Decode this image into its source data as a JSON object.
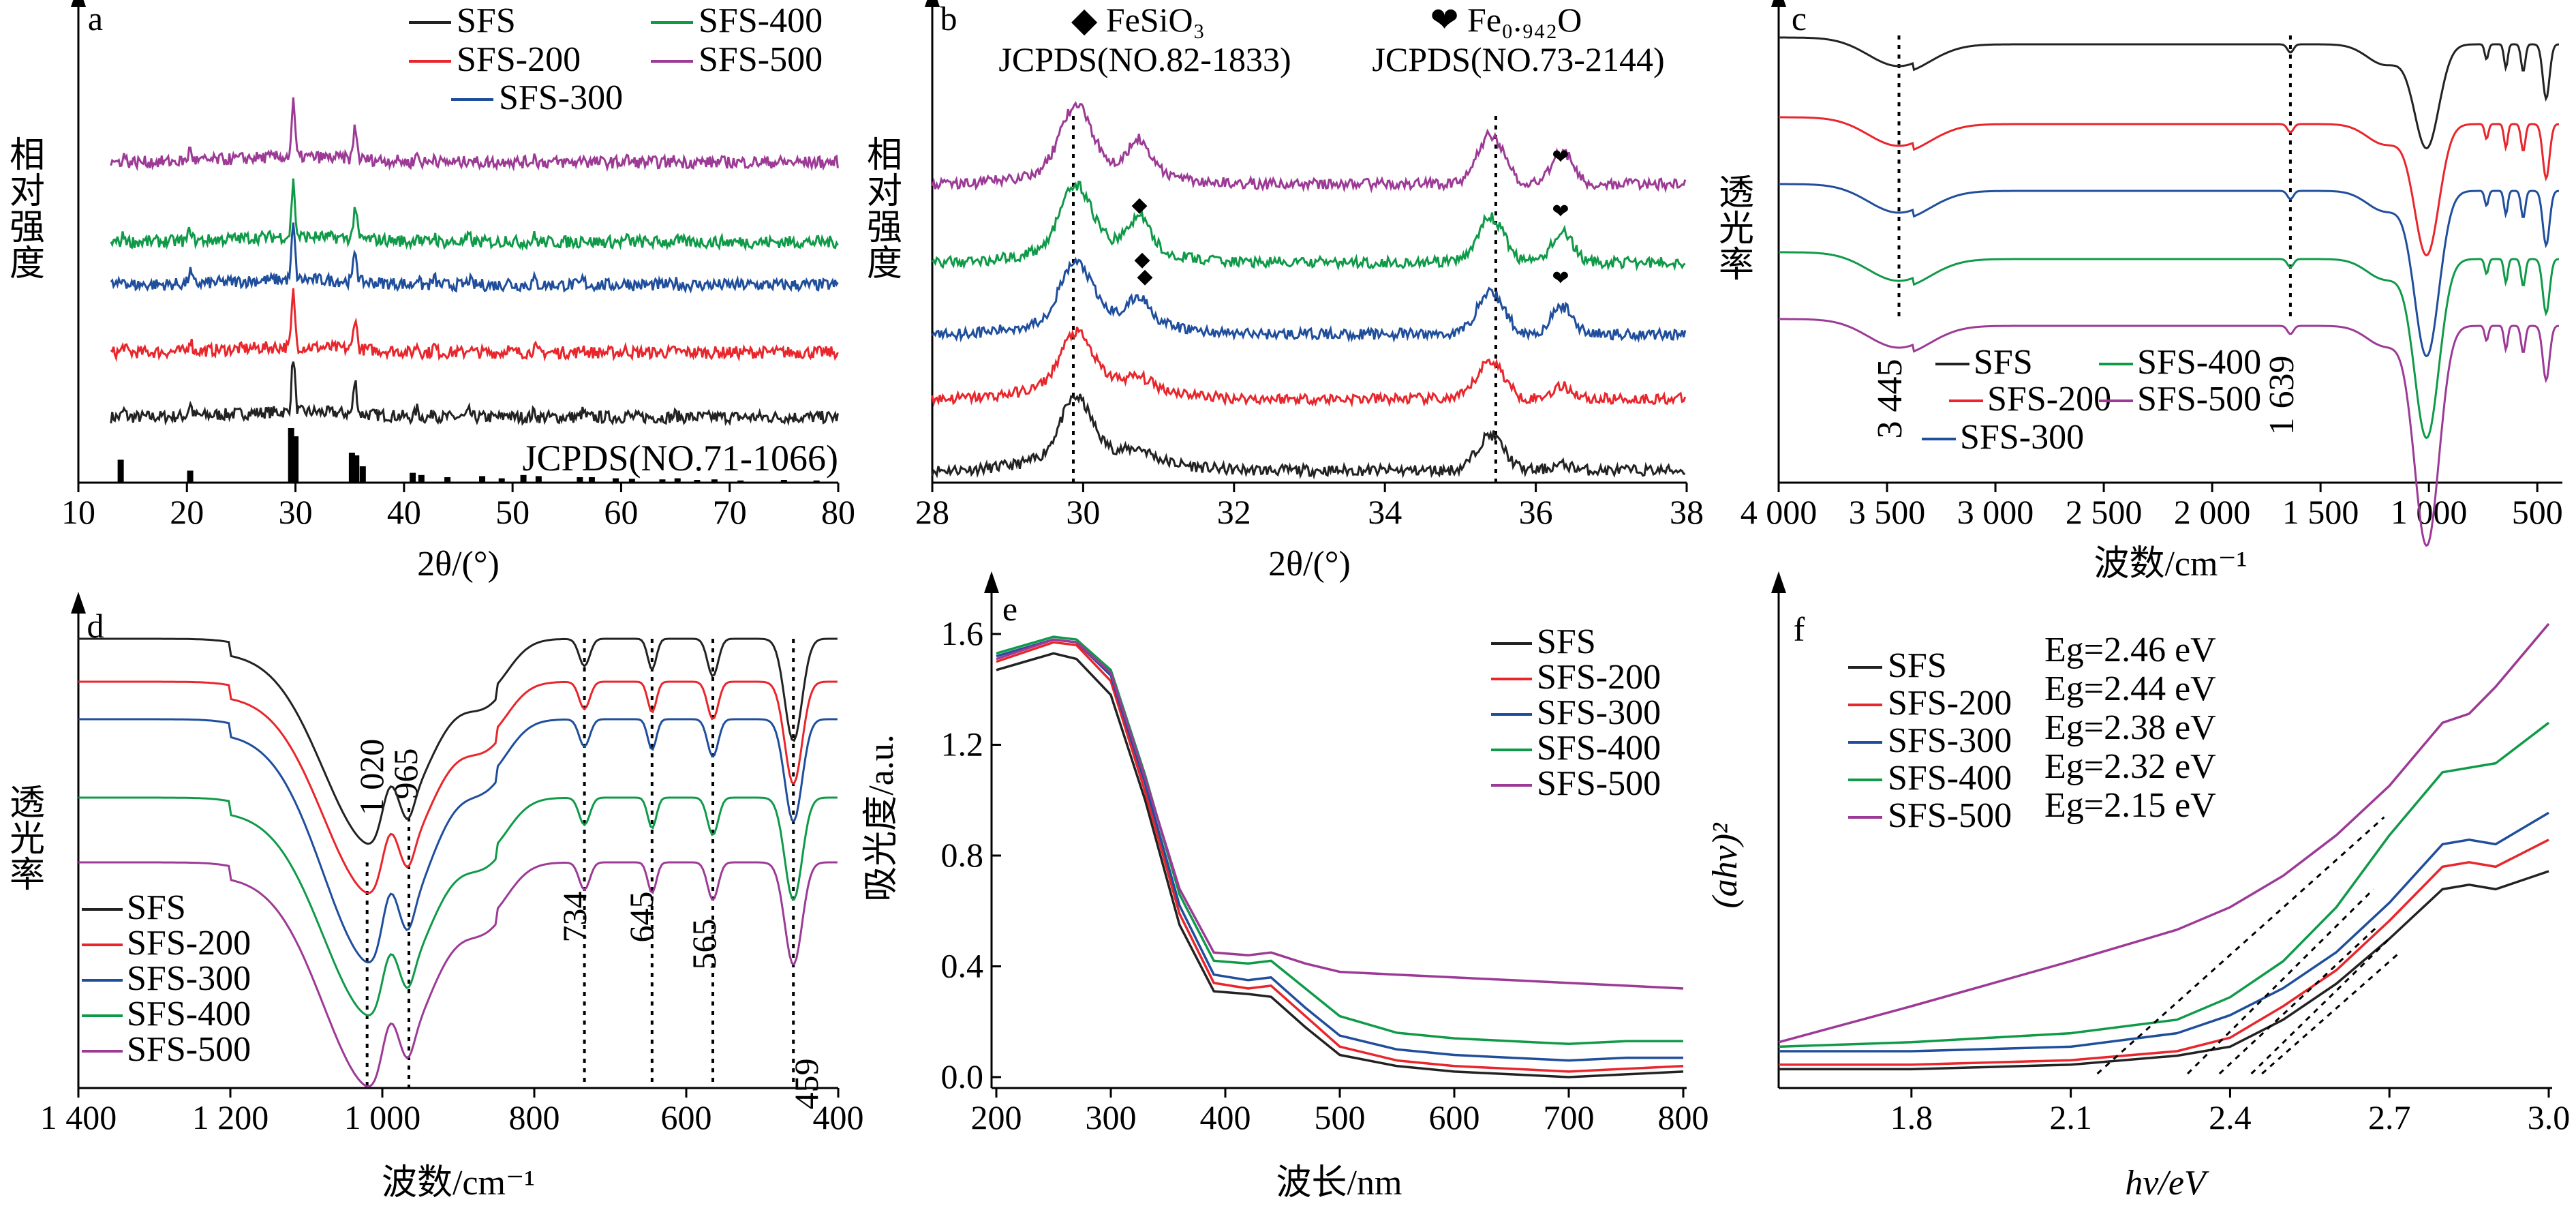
{
  "figure": {
    "panels": {
      "a": {
        "letter": "a",
        "xlabel": "2θ/(°)",
        "ylabel": "相对强度",
        "ref_label": "JCPDS(NO.71-1066)",
        "xticks": [
          "10",
          "20",
          "30",
          "40",
          "50",
          "60",
          "70",
          "80"
        ],
        "legend": [
          "SFS",
          "SFS-200",
          "SFS-300",
          "SFS-400",
          "SFS-500"
        ]
      },
      "b": {
        "letter": "b",
        "xlabel": "2θ/(°)",
        "ylabel": "相对强度",
        "xticks": [
          "28",
          "30",
          "32",
          "34",
          "36",
          "38"
        ],
        "ref1": {
          "marker": "◆",
          "name": "FeSiO₃",
          "card": "JCPDS(NO.82-1833)"
        },
        "ref2": {
          "marker": "❤",
          "name": "Fe₀.₉₄₂O",
          "card": "JCPDS(NO.73-2144)"
        }
      },
      "c": {
        "letter": "c",
        "xlabel": "波数/cm⁻¹",
        "ylabel": "透光率",
        "xticks": [
          "4 000",
          "3 500",
          "3 000",
          "2 500",
          "2 000",
          "1 500",
          "1 000",
          "500"
        ],
        "annotations": [
          "3 445",
          "1 639"
        ],
        "legend": [
          "SFS",
          "SFS-200",
          "SFS-300",
          "SFS-400",
          "SFS-500"
        ]
      },
      "d": {
        "letter": "d",
        "xlabel": "波数/cm⁻¹",
        "ylabel": "透光率",
        "xticks": [
          "1 400",
          "1 200",
          "1 000",
          "800",
          "600",
          "400"
        ],
        "annotations": [
          "1 020",
          "965",
          "734",
          "645",
          "565",
          "459"
        ],
        "legend": [
          "SFS",
          "SFS-200",
          "SFS-300",
          "SFS-400",
          "SFS-500"
        ]
      },
      "e": {
        "letter": "e",
        "xlabel": "波长/nm",
        "ylabel": "吸光度/a.u.",
        "xticks": [
          "200",
          "300",
          "400",
          "500",
          "600",
          "700",
          "800"
        ],
        "yticks": [
          "0.0",
          "0.4",
          "0.8",
          "1.2",
          "1.6"
        ],
        "legend": [
          "SFS",
          "SFS-200",
          "SFS-300",
          "SFS-400",
          "SFS-500"
        ]
      },
      "f": {
        "letter": "f",
        "xlabel": "hv/eV",
        "ylabel": "(ahv)²",
        "xticks": [
          "1.8",
          "2.1",
          "2.4",
          "2.7",
          "3.0"
        ],
        "legend": [
          "SFS",
          "SFS-200",
          "SFS-300",
          "SFS-400",
          "SFS-500"
        ],
        "eg_labels": [
          "Eg=2.46 eV",
          "Eg=2.44 eV",
          "Eg=2.38 eV",
          "Eg=2.32 eV",
          "Eg=2.15 eV"
        ]
      }
    }
  },
  "colors": {
    "SFS": "#222222",
    "SFS-200": "#e8262c",
    "SFS-300": "#1f4e9c",
    "SFS-400": "#0f9a48",
    "SFS-500": "#9c3a96",
    "axis": "#000000"
  },
  "chart_data": [
    {
      "panel": "a",
      "type": "line",
      "title": "",
      "xlabel": "2θ/(°)",
      "ylabel": "相对强度",
      "xlim": [
        10,
        80
      ],
      "series_names": [
        "SFS",
        "SFS-200",
        "SFS-300",
        "SFS-400",
        "SFS-500"
      ],
      "peaks_2theta": [
        14.2,
        20.3,
        29.8,
        35.5,
        41.2,
        42.8,
        46.0,
        49.5,
        52.0,
        56.5,
        60.5,
        65.0
      ],
      "peak_heights": [
        0.12,
        0.22,
        1.0,
        0.6,
        0.15,
        0.12,
        0.1,
        0.08,
        0.1,
        0.1,
        0.06,
        0.05
      ],
      "reference_sticks": [
        [
          13.9,
          0.42
        ],
        [
          20.3,
          0.22
        ],
        [
          29.6,
          1.0
        ],
        [
          30.0,
          0.85
        ],
        [
          35.2,
          0.55
        ],
        [
          35.6,
          0.5
        ],
        [
          36.2,
          0.3
        ],
        [
          40.8,
          0.18
        ],
        [
          41.6,
          0.14
        ],
        [
          44.0,
          0.1
        ],
        [
          47.2,
          0.12
        ],
        [
          49.0,
          0.08
        ],
        [
          51.0,
          0.14
        ],
        [
          52.4,
          0.12
        ],
        [
          56.2,
          0.1
        ],
        [
          57.3,
          0.1
        ],
        [
          59.5,
          0.08
        ],
        [
          61.0,
          0.07
        ],
        [
          63.8,
          0.06
        ],
        [
          65.2,
          0.08
        ],
        [
          67.0,
          0.05
        ],
        [
          68.6,
          0.06
        ],
        [
          71.0,
          0.04
        ],
        [
          75.0,
          0.05
        ],
        [
          78.0,
          0.04
        ]
      ]
    },
    {
      "panel": "b",
      "type": "line",
      "title": "",
      "xlabel": "2θ/(°)",
      "ylabel": "相对强度",
      "xlim": [
        28,
        38
      ],
      "series_names": [
        "SFS",
        "SFS-200",
        "SFS-300",
        "SFS-400",
        "SFS-500"
      ],
      "reference_lines": [
        29.87,
        35.47
      ],
      "peaks": [
        [
          29.9,
          1.0
        ],
        [
          30.7,
          0.35
        ],
        [
          35.4,
          0.7
        ],
        [
          36.3,
          0.35
        ]
      ]
    },
    {
      "panel": "c",
      "type": "line",
      "title": "",
      "xlabel": "波数/cm⁻¹",
      "ylabel": "透光率",
      "xlim": [
        4000,
        400
      ],
      "series_names": [
        "SFS",
        "SFS-200",
        "SFS-300",
        "SFS-400",
        "SFS-500"
      ],
      "marked_bands": [
        3445,
        1639
      ],
      "main_absorption": [
        [
          1020,
          0.9
        ],
        [
          965,
          0.8
        ],
        [
          734,
          0.2
        ],
        [
          645,
          0.3
        ],
        [
          565,
          0.35
        ],
        [
          459,
          0.6
        ]
      ]
    },
    {
      "panel": "d",
      "type": "line",
      "title": "",
      "xlabel": "波数/cm⁻¹",
      "ylabel": "透光率",
      "xlim": [
        1400,
        400
      ],
      "series_names": [
        "SFS",
        "SFS-200",
        "SFS-300",
        "SFS-400",
        "SFS-500"
      ],
      "marked_bands": [
        1020,
        965,
        734,
        645,
        565,
        459
      ]
    },
    {
      "panel": "e",
      "type": "line",
      "title": "",
      "xlabel": "波长/nm",
      "ylabel": "吸光度/a.u.",
      "xlim": [
        200,
        800
      ],
      "ylim": [
        0,
        1.65
      ],
      "x": [
        200,
        250,
        270,
        300,
        330,
        360,
        390,
        420,
        440,
        470,
        500,
        550,
        600,
        650,
        700,
        750,
        800
      ],
      "series": [
        {
          "name": "SFS",
          "values": [
            1.47,
            1.53,
            1.51,
            1.38,
            1.0,
            0.55,
            0.31,
            0.3,
            0.29,
            0.18,
            0.08,
            0.04,
            0.02,
            0.01,
            0.0,
            0.01,
            0.02
          ]
        },
        {
          "name": "SFS-200",
          "values": [
            1.5,
            1.57,
            1.56,
            1.43,
            1.03,
            0.59,
            0.34,
            0.32,
            0.33,
            0.22,
            0.11,
            0.06,
            0.04,
            0.03,
            0.02,
            0.03,
            0.04
          ]
        },
        {
          "name": "SFS-300",
          "values": [
            1.52,
            1.58,
            1.57,
            1.45,
            1.06,
            0.62,
            0.37,
            0.35,
            0.36,
            0.25,
            0.15,
            0.1,
            0.08,
            0.07,
            0.06,
            0.07,
            0.07
          ]
        },
        {
          "name": "SFS-400",
          "values": [
            1.53,
            1.59,
            1.58,
            1.47,
            1.09,
            0.66,
            0.42,
            0.41,
            0.42,
            0.32,
            0.22,
            0.16,
            0.14,
            0.13,
            0.12,
            0.13,
            0.13
          ]
        },
        {
          "name": "SFS-500",
          "values": [
            1.51,
            1.58,
            1.57,
            1.46,
            1.08,
            0.68,
            0.45,
            0.44,
            0.45,
            0.41,
            0.38,
            0.37,
            0.36,
            0.35,
            0.34,
            0.33,
            0.32
          ]
        }
      ]
    },
    {
      "panel": "f",
      "type": "line",
      "title": "",
      "xlabel": "hv/eV",
      "ylabel": "(ahv)²",
      "xlim": [
        1.55,
        3.0
      ],
      "x": [
        1.55,
        1.8,
        2.1,
        2.3,
        2.4,
        2.5,
        2.6,
        2.7,
        2.8,
        2.85,
        2.9,
        3.0
      ],
      "series": [
        {
          "name": "SFS",
          "values": [
            0.01,
            0.01,
            0.02,
            0.04,
            0.06,
            0.12,
            0.2,
            0.3,
            0.41,
            0.42,
            0.41,
            0.45
          ]
        },
        {
          "name": "SFS-200",
          "values": [
            0.02,
            0.02,
            0.03,
            0.05,
            0.08,
            0.15,
            0.23,
            0.34,
            0.46,
            0.47,
            0.46,
            0.52
          ]
        },
        {
          "name": "SFS-300",
          "values": [
            0.05,
            0.05,
            0.06,
            0.09,
            0.13,
            0.19,
            0.27,
            0.38,
            0.51,
            0.52,
            0.51,
            0.58
          ]
        },
        {
          "name": "SFS-400",
          "values": [
            0.06,
            0.07,
            0.09,
            0.12,
            0.17,
            0.25,
            0.37,
            0.53,
            0.67,
            0.68,
            0.69,
            0.78
          ]
        },
        {
          "name": "SFS-500",
          "values": [
            0.07,
            0.15,
            0.25,
            0.32,
            0.37,
            0.44,
            0.53,
            0.64,
            0.78,
            0.8,
            0.86,
            1.0
          ]
        }
      ],
      "tauc_intercepts_eV": [
        2.46,
        2.44,
        2.38,
        2.32,
        2.15
      ]
    }
  ]
}
